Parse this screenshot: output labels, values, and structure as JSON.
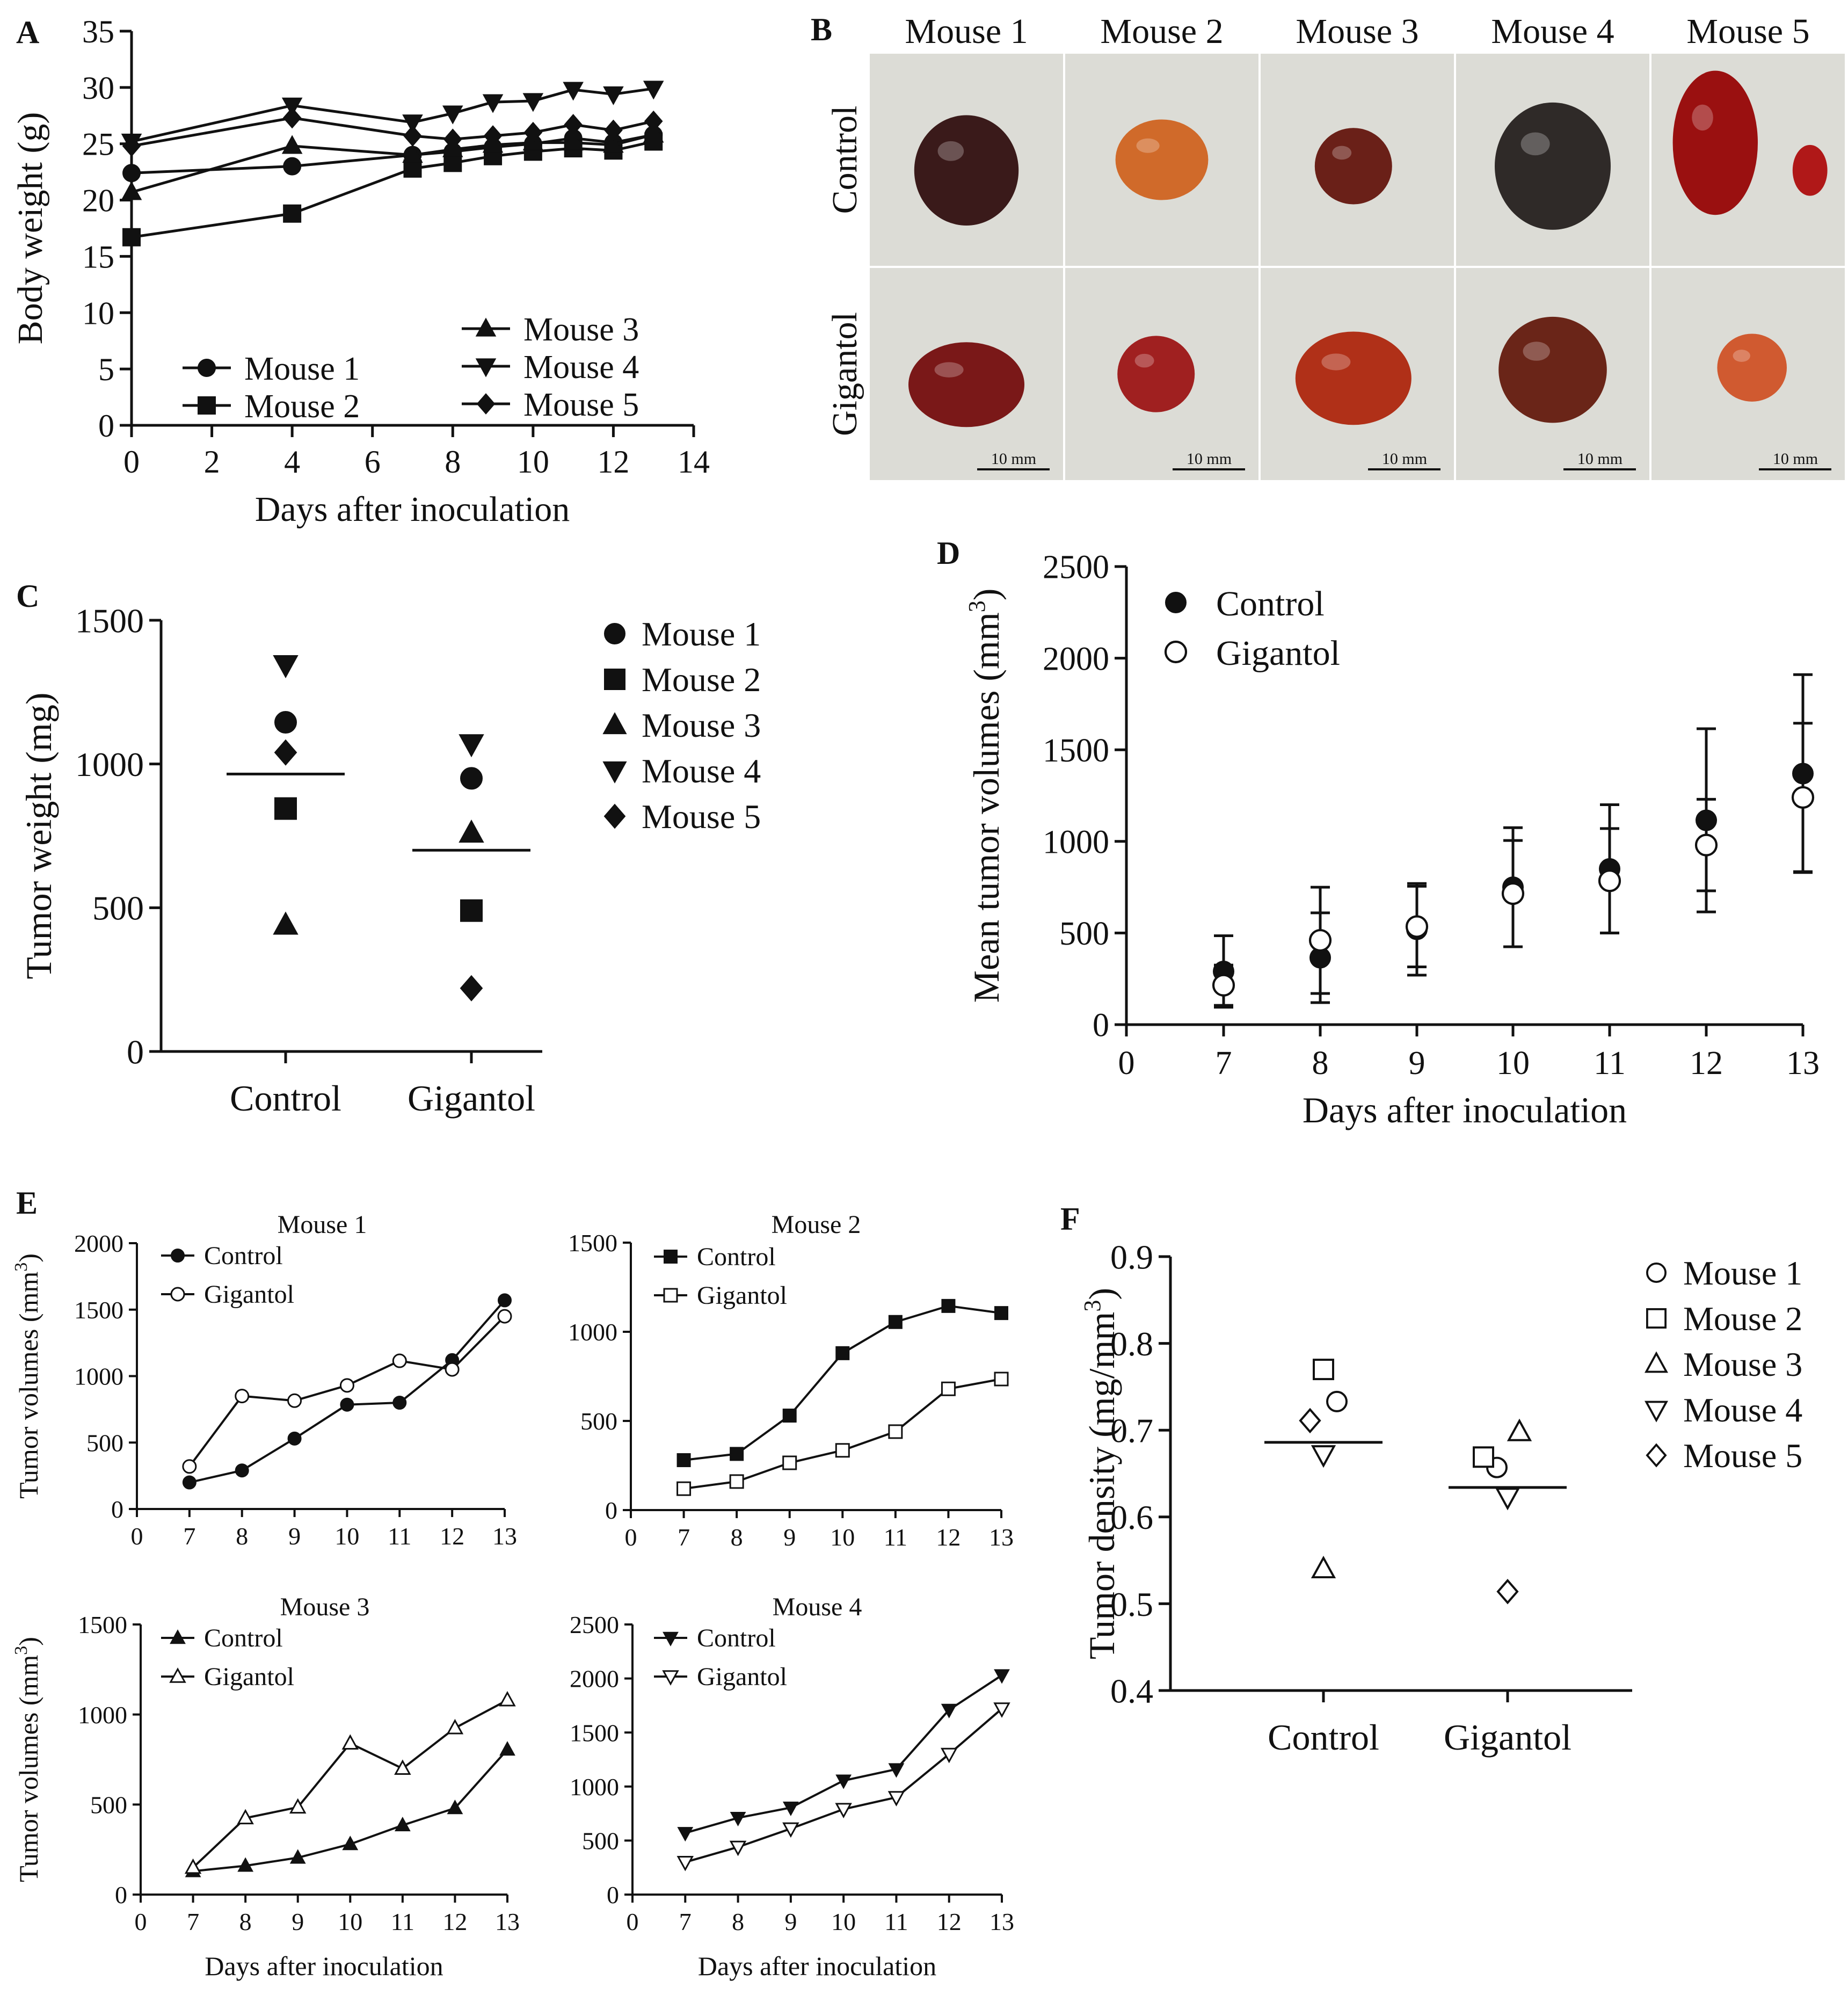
{
  "panel_letters": {
    "A": "A",
    "B": "B",
    "C": "C",
    "D": "D",
    "E": "E",
    "F": "F"
  },
  "photo_panel": {
    "columns": [
      "Mouse 1",
      "Mouse 2",
      "Mouse 3",
      "Mouse 4",
      "Mouse 5"
    ],
    "rows": [
      "Control",
      "Gigantol"
    ],
    "scale_bar_label": "10 mm",
    "backdrop_color": "#dcdcd6",
    "tumor_colors": [
      "#3a1a1a",
      "#d06a2a",
      "#6a2018",
      "#2f2a28",
      "#9a1010",
      "#7a1818",
      "#a02020",
      "#b03018",
      "#6a2518",
      "#d05a30"
    ]
  },
  "chart_data": [
    {
      "id": "A",
      "type": "line",
      "title": "",
      "xlabel": "Days after inoculation",
      "ylabel": "Body weight (g)",
      "xlim": [
        0,
        14
      ],
      "ylim": [
        0,
        35
      ],
      "xticks": [
        0,
        2,
        4,
        6,
        8,
        10,
        12,
        14
      ],
      "yticks": [
        0,
        5,
        10,
        15,
        20,
        25,
        30,
        35
      ],
      "x": [
        0,
        4,
        7,
        8,
        9,
        10,
        11,
        12,
        13
      ],
      "series": [
        {
          "name": "Mouse 1",
          "marker": "circle",
          "values": [
            22.4,
            23.0,
            24.0,
            24.3,
            24.7,
            25.0,
            25.5,
            25.1,
            25.8
          ]
        },
        {
          "name": "Mouse 2",
          "marker": "square",
          "values": [
            16.7,
            18.8,
            22.8,
            23.3,
            23.9,
            24.3,
            24.6,
            24.4,
            25.2
          ]
        },
        {
          "name": "Mouse 3",
          "marker": "triangle-up",
          "values": [
            20.7,
            24.8,
            24.0,
            24.5,
            24.9,
            25.1,
            25.1,
            24.9,
            25.8
          ]
        },
        {
          "name": "Mouse 4",
          "marker": "triangle-down",
          "values": [
            25.2,
            28.4,
            26.9,
            27.7,
            28.7,
            28.8,
            29.8,
            29.4,
            29.9
          ]
        },
        {
          "name": "Mouse 5",
          "marker": "diamond",
          "values": [
            24.8,
            27.3,
            25.7,
            25.4,
            25.7,
            26.0,
            26.7,
            26.2,
            27.0
          ]
        }
      ]
    },
    {
      "id": "C",
      "type": "scatter",
      "title": "",
      "xlabel": "",
      "ylabel": "Tumor weight (mg)",
      "ylim": [
        0,
        1500
      ],
      "yticks": [
        0,
        500,
        1000,
        1500
      ],
      "categories": [
        "Control",
        "Gigantol"
      ],
      "means": [
        965,
        700
      ],
      "series": [
        {
          "name": "Mouse 1",
          "marker": "circle",
          "values": [
            1145,
            950
          ]
        },
        {
          "name": "Mouse 2",
          "marker": "square",
          "values": [
            845,
            490
          ]
        },
        {
          "name": "Mouse 3",
          "marker": "triangle-up",
          "values": [
            440,
            760
          ]
        },
        {
          "name": "Mouse 4",
          "marker": "triangle-down",
          "values": [
            1345,
            1070
          ]
        },
        {
          "name": "Mouse 5",
          "marker": "diamond",
          "values": [
            1040,
            220
          ]
        }
      ]
    },
    {
      "id": "D",
      "type": "scatter",
      "title": "",
      "xlabel": "Days after inoculation",
      "ylabel": "Mean tumor volumes (mm",
      "ylabel_sup": "3",
      "ylabel_end": ")",
      "xlim": [
        0,
        13
      ],
      "ylim": [
        0,
        2500
      ],
      "xticks": [
        0,
        7,
        8,
        9,
        10,
        11,
        12,
        13
      ],
      "yticks": [
        0,
        500,
        1000,
        1500,
        2000,
        2500
      ],
      "x": [
        7,
        8,
        9,
        10,
        11,
        12,
        13
      ],
      "series": [
        {
          "name": "Control",
          "marker": "circle-filled",
          "values": [
            290,
            365,
            520,
            750,
            850,
            1115,
            1370
          ],
          "sd": [
            195,
            245,
            250,
            325,
            350,
            500,
            540
          ]
        },
        {
          "name": "Gigantol",
          "marker": "circle-open",
          "values": [
            215,
            460,
            535,
            715,
            785,
            980,
            1240
          ],
          "sd": [
            110,
            290,
            220,
            290,
            285,
            250,
            405
          ]
        }
      ]
    },
    {
      "id": "E1",
      "type": "line",
      "title": "Mouse 1",
      "xlabel": "",
      "ylabel": "Tumor volumes (mm",
      "ylabel_sup": "3",
      "ylabel_end": ")",
      "xlim": [
        0,
        13
      ],
      "ylim": [
        0,
        2000
      ],
      "xticks": [
        0,
        7,
        8,
        9,
        10,
        11,
        12,
        13
      ],
      "yticks": [
        0,
        500,
        1000,
        1500,
        2000
      ],
      "x": [
        7,
        8,
        9,
        10,
        11,
        12,
        13
      ],
      "series": [
        {
          "name": "Control",
          "marker": "circle-filled",
          "values": [
            200,
            290,
            530,
            785,
            800,
            1120,
            1570
          ]
        },
        {
          "name": "Gigantol",
          "marker": "circle-open",
          "values": [
            320,
            850,
            815,
            930,
            1115,
            1050,
            1450
          ]
        }
      ]
    },
    {
      "id": "E2",
      "type": "line",
      "title": "Mouse 2",
      "xlabel": "",
      "ylabel": "",
      "xlim": [
        0,
        13
      ],
      "ylim": [
        0,
        1500
      ],
      "xticks": [
        0,
        7,
        8,
        9,
        10,
        11,
        12,
        13
      ],
      "yticks": [
        0,
        500,
        1000,
        1500
      ],
      "x": [
        7,
        8,
        9,
        10,
        11,
        12,
        13
      ],
      "series": [
        {
          "name": "Control",
          "marker": "square-filled",
          "values": [
            280,
            315,
            530,
            880,
            1055,
            1145,
            1105
          ]
        },
        {
          "name": "Gigantol",
          "marker": "square-open",
          "values": [
            120,
            160,
            265,
            335,
            440,
            680,
            735
          ]
        }
      ]
    },
    {
      "id": "E3",
      "type": "line",
      "title": "Mouse 3",
      "xlabel": "Days after inoculation",
      "ylabel": "Tumor volumes (mm",
      "ylabel_sup": "3",
      "ylabel_end": ")",
      "xlim": [
        0,
        13
      ],
      "ylim": [
        0,
        1500
      ],
      "xticks": [
        0,
        7,
        8,
        9,
        10,
        11,
        12,
        13
      ],
      "yticks": [
        0,
        500,
        1000,
        1500
      ],
      "x": [
        7,
        8,
        9,
        10,
        11,
        12,
        13
      ],
      "series": [
        {
          "name": "Control",
          "marker": "triangle-up-filled",
          "values": [
            130,
            160,
            205,
            280,
            385,
            480,
            805
          ]
        },
        {
          "name": "Gigantol",
          "marker": "triangle-up-open",
          "values": [
            150,
            425,
            485,
            840,
            700,
            925,
            1080
          ]
        }
      ]
    },
    {
      "id": "E4",
      "type": "line",
      "title": "Mouse 4",
      "xlabel": "Days after inoculation",
      "ylabel": "",
      "xlim": [
        0,
        13
      ],
      "ylim": [
        0,
        2500
      ],
      "xticks": [
        0,
        7,
        8,
        9,
        10,
        11,
        12,
        13
      ],
      "yticks": [
        0,
        500,
        1000,
        1500,
        2000,
        2500
      ],
      "x": [
        7,
        8,
        9,
        10,
        11,
        12,
        13
      ],
      "series": [
        {
          "name": "Control",
          "marker": "triangle-down-filled",
          "values": [
            570,
            710,
            805,
            1055,
            1160,
            1710,
            2030
          ]
        },
        {
          "name": "Gigantol",
          "marker": "triangle-down-open",
          "values": [
            300,
            440,
            610,
            790,
            900,
            1300,
            1720
          ]
        }
      ]
    },
    {
      "id": "F",
      "type": "scatter",
      "title": "",
      "xlabel": "",
      "ylabel": "Tumor density (mg/mm",
      "ylabel_sup": "3",
      "ylabel_end": ")",
      "ylim": [
        0.4,
        0.9
      ],
      "yticks": [
        0.4,
        0.5,
        0.6,
        0.7,
        0.8,
        0.9
      ],
      "categories": [
        "Control",
        "Gigantol"
      ],
      "means": [
        0.686,
        0.634
      ],
      "series": [
        {
          "name": "Mouse 1",
          "marker": "circle-open",
          "values": [
            0.733,
            0.657
          ]
        },
        {
          "name": "Mouse 2",
          "marker": "square-open",
          "values": [
            0.77,
            0.669
          ]
        },
        {
          "name": "Mouse 3",
          "marker": "triangle-up-open",
          "values": [
            0.54,
            0.698
          ]
        },
        {
          "name": "Mouse 4",
          "marker": "triangle-down-open",
          "values": [
            0.672,
            0.623
          ]
        },
        {
          "name": "Mouse 5",
          "marker": "diamond-open",
          "values": [
            0.711,
            0.514
          ]
        }
      ]
    }
  ]
}
